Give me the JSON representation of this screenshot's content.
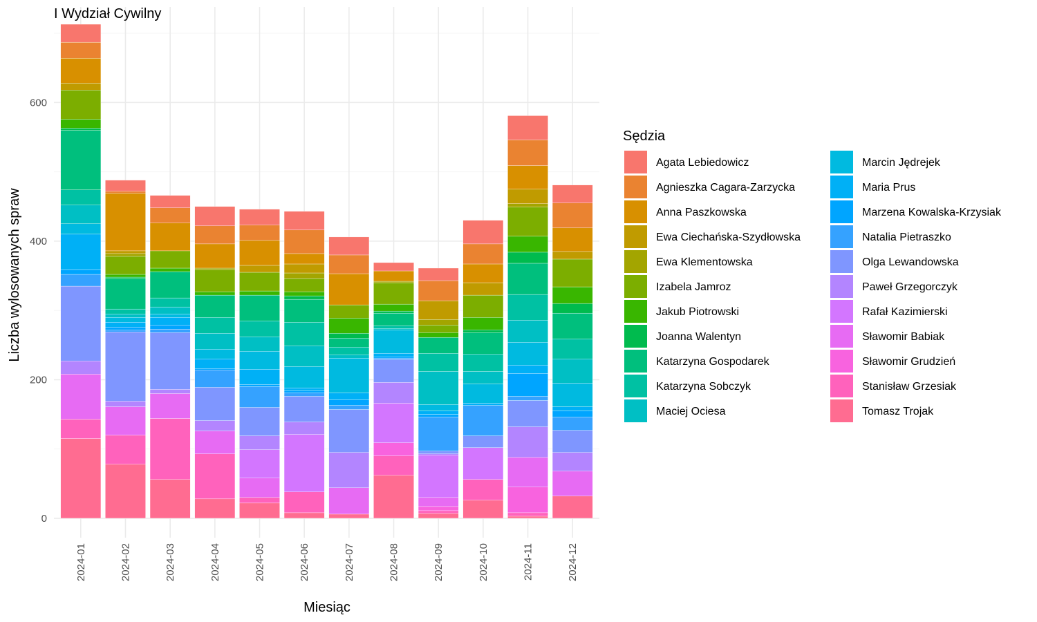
{
  "chart_data": {
    "type": "bar",
    "stacked": true,
    "title": "I Wydział Cywilny",
    "xlabel": "Miesiąc",
    "ylabel": "Liczba wylosowanych spraw",
    "ylim": [
      -28,
      738
    ],
    "yticks": [
      0,
      200,
      400,
      600
    ],
    "grid": true,
    "legend_position": "right",
    "legend_title": "Sędzia",
    "categories": [
      "2024-01",
      "2024-02",
      "2024-03",
      "2024-04",
      "2024-05",
      "2024-06",
      "2024-07",
      "2024-08",
      "2024-09",
      "2024-10",
      "2024-11",
      "2024-12"
    ],
    "series": [
      {
        "name": "Agata Lebiedowicz",
        "color": "#F8766D",
        "values": [
          26,
          16,
          18,
          28,
          23,
          27,
          26,
          12,
          18,
          34,
          35,
          26
        ]
      },
      {
        "name": "Agnieszka Cagara-Zarzycka",
        "color": "#EA8331",
        "values": [
          23,
          3,
          22,
          26,
          22,
          34,
          27,
          0,
          29,
          29,
          37,
          36
        ]
      },
      {
        "name": "Anna Paszkowska",
        "color": "#D89000",
        "values": [
          36,
          83,
          40,
          35,
          36,
          15,
          45,
          15,
          0,
          27,
          34,
          34
        ]
      },
      {
        "name": "Ewa Ciechańska-Szydłowska",
        "color": "#C09B00",
        "values": [
          10,
          4,
          0,
          0,
          10,
          13,
          0,
          0,
          27,
          18,
          21,
          11
        ]
      },
      {
        "name": "Ewa Klementowska",
        "color": "#A3A500",
        "values": [
          0,
          4,
          0,
          2,
          0,
          8,
          0,
          2,
          8,
          0,
          5,
          0
        ]
      },
      {
        "name": "Izabela Jamroz",
        "color": "#7CAE00",
        "values": [
          42,
          26,
          25,
          32,
          27,
          19,
          19,
          31,
          11,
          32,
          42,
          40
        ]
      },
      {
        "name": "Jakub Piotrowski",
        "color": "#39B600",
        "values": [
          13,
          4,
          5,
          5,
          6,
          6,
          22,
          10,
          7,
          18,
          23,
          24
        ]
      },
      {
        "name": "Joanna Walentyn",
        "color": "#00BB4E",
        "values": [
          3,
          2,
          0,
          0,
          0,
          5,
          7,
          3,
          0,
          4,
          16,
          14
        ]
      },
      {
        "name": "Katarzyna Gospodarek",
        "color": "#00BF7D",
        "values": [
          86,
          44,
          38,
          32,
          37,
          33,
          13,
          18,
          23,
          31,
          45,
          37
        ]
      },
      {
        "name": "Katarzyna Sobczyk",
        "color": "#00C1A3",
        "values": [
          22,
          7,
          13,
          23,
          23,
          34,
          11,
          4,
          26,
          25,
          37,
          29
        ]
      },
      {
        "name": "Maciej Ociesa",
        "color": "#00BFC4",
        "values": [
          27,
          5,
          10,
          23,
          21,
          30,
          5,
          2,
          48,
          18,
          32,
          35
        ]
      },
      {
        "name": "Marcin Jędrejek",
        "color": "#00BAE0",
        "values": [
          15,
          7,
          5,
          14,
          26,
          31,
          50,
          34,
          9,
          28,
          33,
          34
        ]
      },
      {
        "name": "Maria Prus",
        "color": "#00B0F6",
        "values": [
          51,
          7,
          11,
          14,
          22,
          4,
          10,
          5,
          5,
          3,
          12,
          6
        ]
      },
      {
        "name": "Marzena Kowalska-Krzysiak",
        "color": "#00A5FF",
        "values": [
          7,
          4,
          6,
          2,
          3,
          3,
          8,
          2,
          4,
          0,
          33,
          9
        ]
      },
      {
        "name": "Natalia Pietraszko",
        "color": "#35A2FF",
        "values": [
          17,
          3,
          5,
          25,
          30,
          5,
          6,
          2,
          49,
          44,
          6,
          19
        ]
      },
      {
        "name": "Olga Lewandowska",
        "color": "#7F96FF",
        "values": [
          108,
          100,
          82,
          48,
          41,
          37,
          62,
          33,
          4,
          17,
          38,
          32
        ]
      },
      {
        "name": "Paweł Grzegorczyk",
        "color": "#B385FF",
        "values": [
          19,
          8,
          6,
          15,
          20,
          18,
          51,
          30,
          2,
          0,
          44,
          27
        ]
      },
      {
        "name": "Rafał Kazimierski",
        "color": "#D376FF",
        "values": [
          0,
          0,
          0,
          0,
          41,
          83,
          0,
          57,
          61,
          46,
          0,
          0
        ]
      },
      {
        "name": "Sławomir Babiak",
        "color": "#E76BF3",
        "values": [
          65,
          41,
          36,
          33,
          28,
          0,
          38,
          0,
          13,
          0,
          43,
          36
        ]
      },
      {
        "name": "Sławomir Grudzień",
        "color": "#F863DF",
        "values": [
          0,
          0,
          0,
          0,
          0,
          0,
          0,
          19,
          6,
          0,
          37,
          0
        ]
      },
      {
        "name": "Stanisław Grzesiak",
        "color": "#FF62BC",
        "values": [
          28,
          42,
          88,
          65,
          8,
          30,
          0,
          28,
          4,
          30,
          5,
          0
        ]
      },
      {
        "name": "Tomasz Trojak",
        "color": "#FF6C91",
        "values": [
          115,
          78,
          56,
          28,
          22,
          8,
          6,
          62,
          7,
          26,
          3,
          32
        ]
      }
    ]
  }
}
